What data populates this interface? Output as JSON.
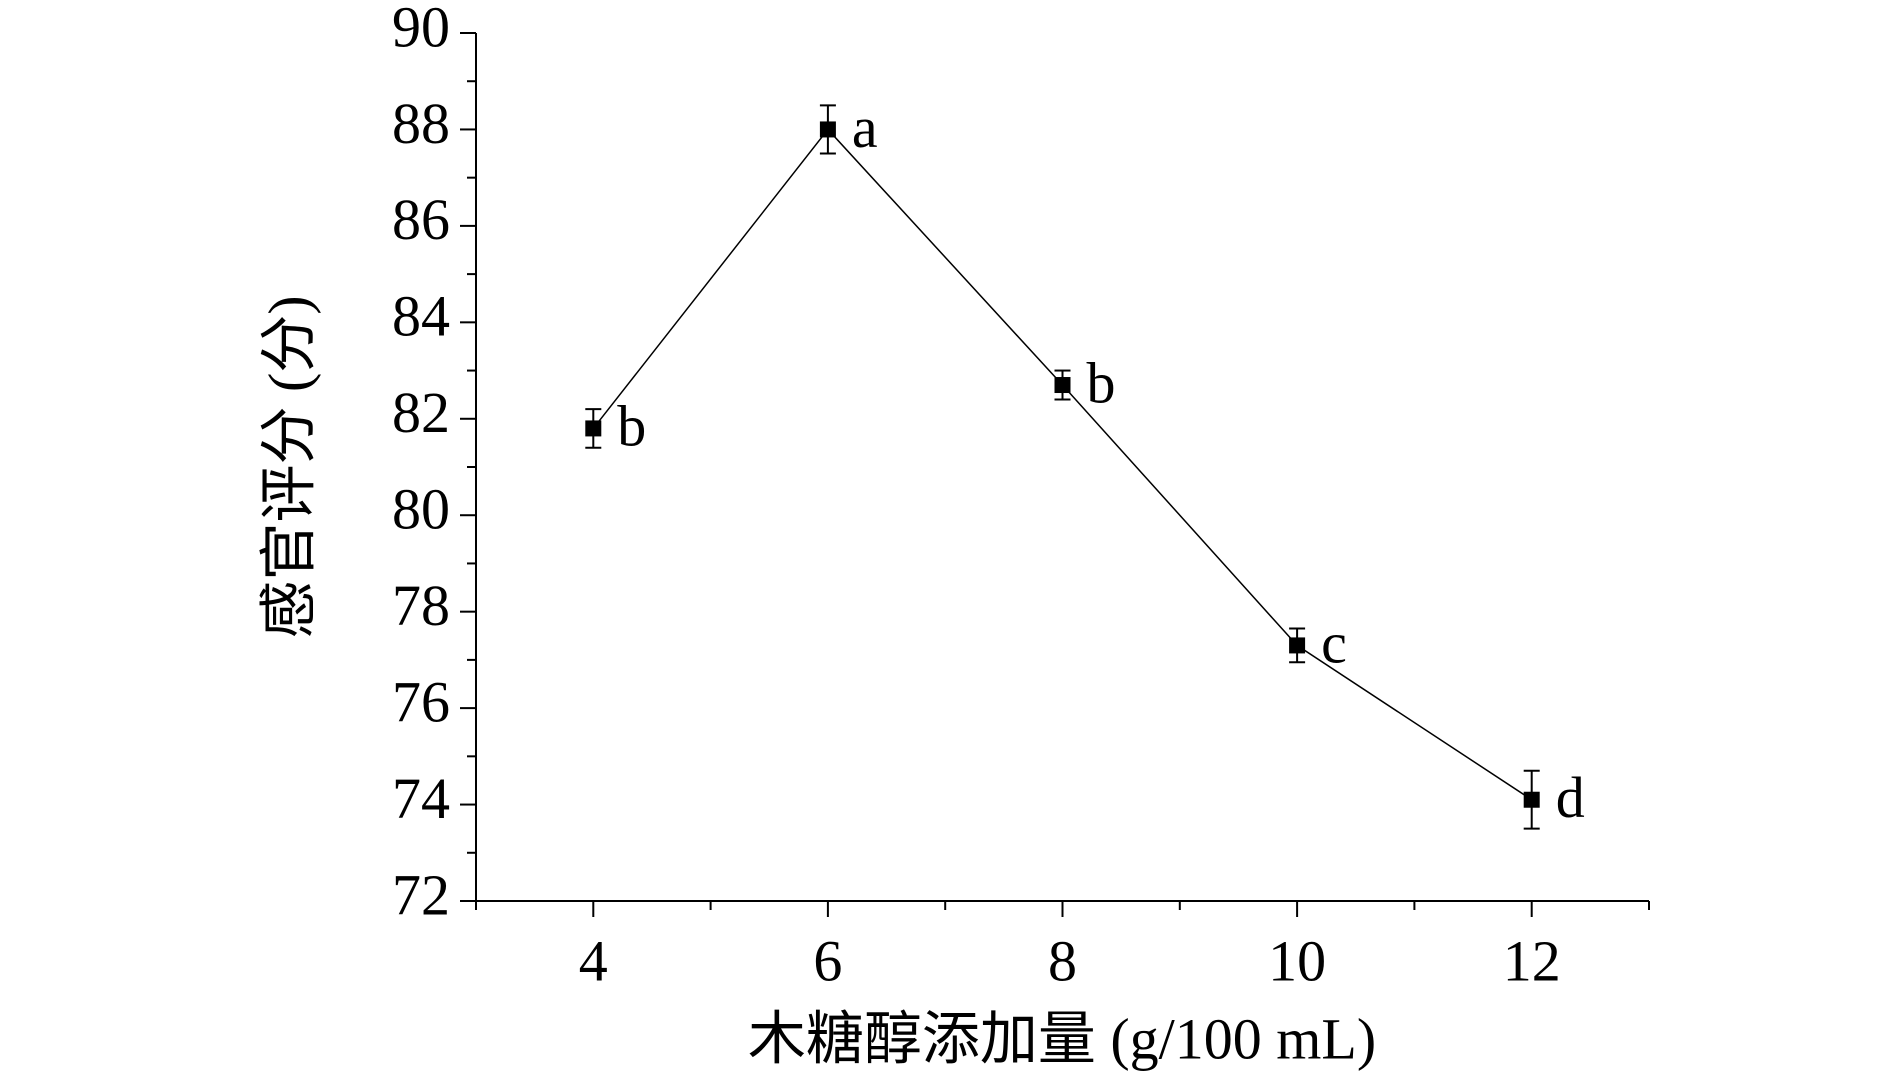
{
  "chart_data": {
    "type": "line",
    "x_label": "木糖醇添加量 (g/100 mL)",
    "y_label": "感官评分 (分)",
    "x": [
      4,
      6,
      8,
      10,
      12
    ],
    "series": [
      {
        "color": "#000000",
        "values": [
          81.8,
          88.0,
          82.7,
          77.3,
          74.1
        ],
        "errors": [
          0.4,
          0.5,
          0.3,
          0.35,
          0.6
        ],
        "point_labels": [
          "b",
          "a",
          "b",
          "c",
          "d"
        ]
      }
    ],
    "xlim": [
      3,
      13
    ],
    "ylim": [
      72,
      90
    ],
    "xticks": [
      4,
      6,
      8,
      10,
      12
    ],
    "xminorticks": [
      3,
      5,
      7,
      9,
      11,
      13
    ],
    "yticks": [
      72,
      74,
      76,
      78,
      80,
      82,
      84,
      86,
      88,
      90
    ],
    "yminorticks": [
      73,
      75,
      77,
      79,
      81,
      83,
      85,
      87,
      89
    ]
  }
}
